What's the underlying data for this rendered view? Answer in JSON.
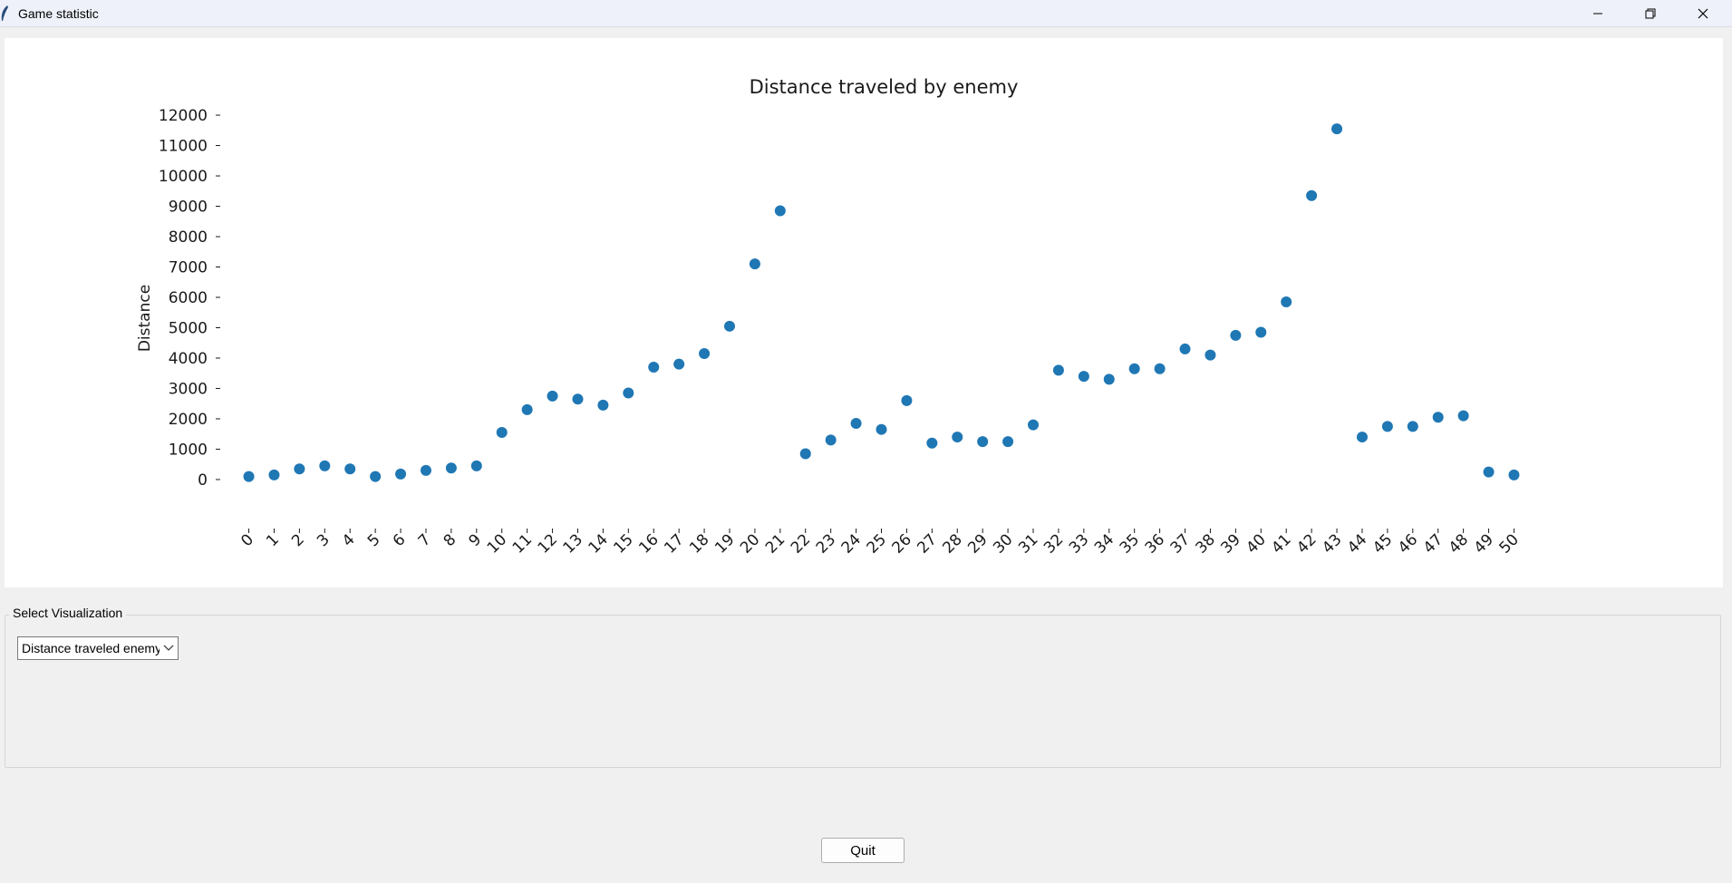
{
  "window": {
    "title": "Game statistic",
    "app_icon": "feather-icon",
    "controls": [
      "minimize-icon",
      "restore-icon",
      "close-icon"
    ]
  },
  "chart_data": {
    "type": "scatter",
    "title": "Distance traveled by enemy",
    "xlabel": "",
    "ylabel": "Distance",
    "x": [
      0,
      1,
      2,
      3,
      4,
      5,
      6,
      7,
      8,
      9,
      10,
      11,
      12,
      13,
      14,
      15,
      16,
      17,
      18,
      19,
      20,
      21,
      22,
      23,
      24,
      25,
      26,
      27,
      28,
      29,
      30,
      31,
      32,
      33,
      34,
      35,
      36,
      37,
      38,
      39,
      40,
      41,
      42,
      43,
      44,
      45,
      46,
      47,
      48,
      49,
      50
    ],
    "y": [
      100,
      150,
      350,
      450,
      350,
      100,
      180,
      300,
      380,
      450,
      1550,
      2300,
      2750,
      2650,
      2450,
      2850,
      3700,
      3800,
      4150,
      5050,
      7100,
      8850,
      850,
      1300,
      1850,
      1650,
      2600,
      1200,
      1400,
      1250,
      1250,
      1800,
      3600,
      3400,
      3300,
      3650,
      3650,
      4300,
      4100,
      4750,
      4850,
      5850,
      9350,
      11550,
      1400,
      1750,
      1750,
      2050,
      2100,
      250,
      150
    ],
    "yticks": [
      0,
      1000,
      2000,
      3000,
      4000,
      5000,
      6000,
      7000,
      8000,
      9000,
      10000,
      11000,
      12000
    ],
    "ylim": [
      -300,
      12300
    ],
    "xlim": [
      -0.7,
      50.7
    ],
    "marker_color": "#1f77b4",
    "grid": false
  },
  "controls": {
    "group_label": "Select Visualization",
    "combo_value": "Distance traveled enemy",
    "quit_label": "Quit"
  }
}
